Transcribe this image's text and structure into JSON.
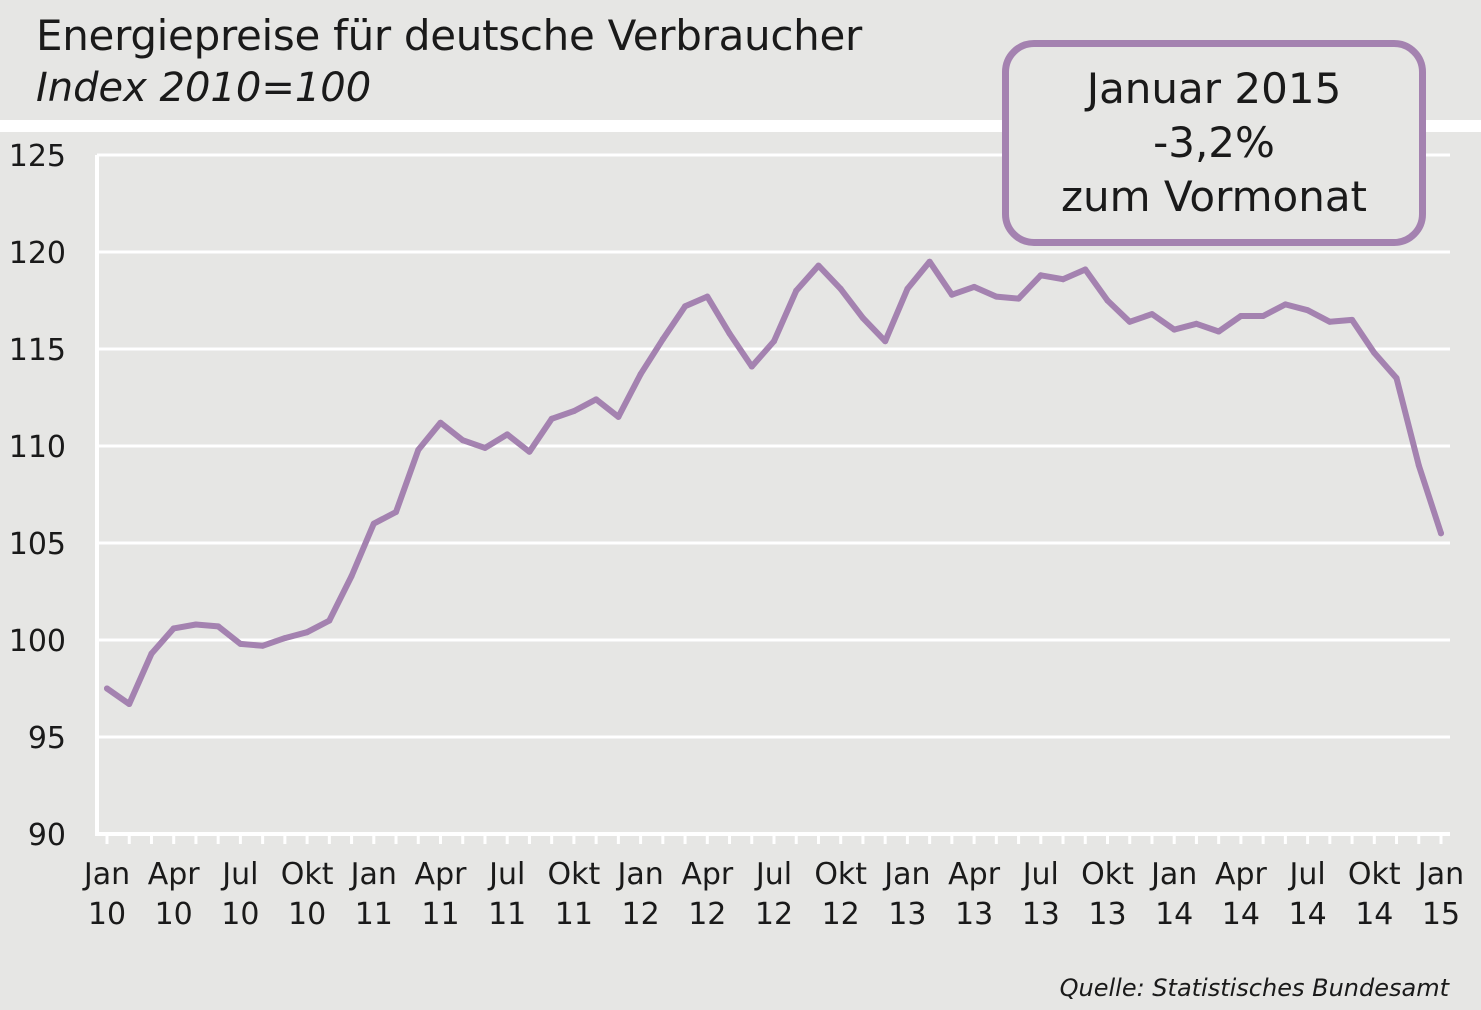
{
  "title": "Energiepreise für deutsche Verbraucher",
  "subtitle": "Index 2010=100",
  "callout": {
    "line1": "Januar 2015",
    "line2": "-3,2%",
    "line3": "zum Vormonat"
  },
  "source": "Quelle: Statistisches Bundesamt",
  "colors": {
    "line": "#a482b0",
    "background": "#e6e6e4",
    "grid": "#ffffff",
    "axis": "#ffffff"
  },
  "chart_data": {
    "type": "line",
    "title": "Energiepreise für deutsche Verbraucher",
    "subtitle": "Index 2010=100",
    "ylim": [
      90,
      125
    ],
    "yticks": [
      90,
      95,
      100,
      105,
      110,
      115,
      120,
      125
    ],
    "grid": true,
    "xtick_labels": [
      {
        "month": "Jan",
        "year": "10"
      },
      {
        "month": "Apr",
        "year": "10"
      },
      {
        "month": "Jul",
        "year": "10"
      },
      {
        "month": "Okt",
        "year": "10"
      },
      {
        "month": "Jan",
        "year": "11"
      },
      {
        "month": "Apr",
        "year": "11"
      },
      {
        "month": "Jul",
        "year": "11"
      },
      {
        "month": "Okt",
        "year": "11"
      },
      {
        "month": "Jan",
        "year": "12"
      },
      {
        "month": "Apr",
        "year": "12"
      },
      {
        "month": "Jul",
        "year": "12"
      },
      {
        "month": "Okt",
        "year": "12"
      },
      {
        "month": "Jan",
        "year": "13"
      },
      {
        "month": "Apr",
        "year": "13"
      },
      {
        "month": "Jul",
        "year": "13"
      },
      {
        "month": "Okt",
        "year": "13"
      },
      {
        "month": "Jan",
        "year": "14"
      },
      {
        "month": "Apr",
        "year": "14"
      },
      {
        "month": "Jul",
        "year": "14"
      },
      {
        "month": "Okt",
        "year": "14"
      },
      {
        "month": "Jan",
        "year": "15"
      }
    ],
    "series": [
      {
        "values": [
          97.5,
          96.7,
          99.3,
          100.6,
          100.8,
          100.7,
          99.8,
          99.7,
          100.1,
          100.4,
          101.0,
          103.3,
          106.0,
          106.6,
          109.8,
          111.2,
          110.3,
          109.9,
          110.6,
          109.7,
          111.4,
          111.8,
          112.4,
          111.5,
          113.7,
          115.5,
          117.2,
          117.7,
          115.8,
          114.1,
          115.4,
          118.0,
          119.3,
          118.1,
          116.6,
          115.4,
          118.1,
          119.5,
          117.8,
          118.2,
          117.7,
          117.6,
          118.8,
          118.6,
          119.1,
          117.5,
          116.4,
          116.8,
          116.0,
          116.3,
          115.9,
          116.7,
          116.7,
          117.3,
          117.0,
          116.4,
          116.5,
          114.8,
          113.5,
          109.0,
          105.5
        ]
      }
    ]
  }
}
